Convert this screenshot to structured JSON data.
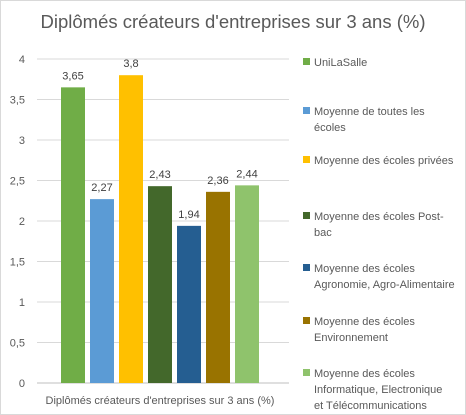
{
  "chart_data": {
    "type": "bar",
    "title": "Diplômés créateurs d'entreprises sur 3 ans (%)",
    "xlabel": "Diplômés créateurs d'entreprises sur 3 ans (%)",
    "ylabel": "",
    "categories": [
      "Diplômés créateurs d'entreprises sur 3 ans (%)"
    ],
    "ylim": [
      0,
      4
    ],
    "yticks": [
      "0",
      "0,5",
      "1",
      "1,5",
      "2",
      "2,5",
      "3",
      "3,5",
      "4"
    ],
    "grid": true,
    "legend_position": "right",
    "series": [
      {
        "name": "UniLaSalle",
        "value": 3.65,
        "label": "3,65",
        "color": "#70ad47",
        "legend_lines": [
          "UniLaSalle"
        ]
      },
      {
        "name": "Moyenne de toutes les écoles",
        "value": 2.27,
        "label": "2,27",
        "color": "#5b9bd5",
        "legend_lines": [
          "Moyenne de toutes les",
          "écoles"
        ]
      },
      {
        "name": "Moyenne des écoles privées",
        "value": 3.8,
        "label": "3,8",
        "color": "#ffc000",
        "legend_lines": [
          "Moyenne des écoles privées"
        ]
      },
      {
        "name": "Moyenne des écoles Post-bac",
        "value": 2.43,
        "label": "2,43",
        "color": "#43682b",
        "legend_lines": [
          "Moyenne des écoles Post-",
          "bac"
        ]
      },
      {
        "name": "Moyenne des écoles Agronomie, Agro-Alimentaire",
        "value": 1.94,
        "label": "1,94",
        "color": "#255e91",
        "legend_lines": [
          "Moyenne des écoles",
          "Agronomie, Agro-Alimentaire"
        ]
      },
      {
        "name": "Moyenne des écoles Environnement",
        "value": 2.36,
        "label": "2,36",
        "color": "#997300",
        "legend_lines": [
          "Moyenne des écoles",
          "Environnement"
        ]
      },
      {
        "name": "Moyenne des écoles Informatique, Electronique et Télécommunications",
        "value": 2.44,
        "label": "2,44",
        "color": "#8fc36c",
        "legend_lines": [
          "Moyenne des écoles",
          "Informatique, Electronique",
          "et Télécommunications"
        ]
      }
    ]
  }
}
